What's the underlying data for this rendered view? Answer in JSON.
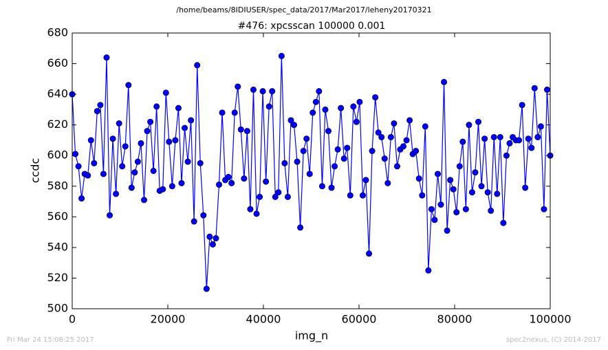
{
  "chart_data": {
    "type": "line",
    "suptitle": "/home/beams/8IDIUSER/spec_data/2017/Mar2017/leheny20170321",
    "title": "#476: xpcsscan 100000 0.001",
    "xlabel": "img_n",
    "ylabel": "ccdc",
    "color": "#0000ff",
    "marker_edge": "#000000",
    "x": [
      0,
      654,
      1307,
      1961,
      2614,
      3268,
      3922,
      4575,
      5229,
      5882,
      6536,
      7190,
      7843,
      8497,
      9150,
      9804,
      10458,
      11111,
      11765,
      12418,
      13072,
      13725,
      14379,
      15033,
      15686,
      16340,
      16993,
      17647,
      18301,
      18954,
      19608,
      20261,
      20915,
      21569,
      22222,
      22876,
      23529,
      24183,
      24837,
      25490,
      26144,
      26797,
      27451,
      28105,
      28758,
      29412,
      30065,
      30719,
      31373,
      32026,
      32680,
      33333,
      33987,
      34641,
      35294,
      35948,
      36601,
      37255,
      37908,
      38562,
      39216,
      39869,
      40523,
      41176,
      41830,
      42484,
      43137,
      43791,
      44444,
      45098,
      45752,
      46405,
      47059,
      47712,
      48366,
      49020,
      49673,
      50327,
      50980,
      51634,
      52288,
      52941,
      53595,
      54248,
      54902,
      55556,
      56209,
      56863,
      57516,
      58170,
      58824,
      59477,
      60131,
      60784,
      61438,
      62092,
      62745,
      63399,
      64052,
      64706,
      65359,
      66013,
      66667,
      67320,
      67974,
      68627,
      69281,
      69935,
      70588,
      71242,
      71895,
      72549,
      73203,
      73856,
      74510,
      75163,
      75817,
      76471,
      77124,
      77778,
      78431,
      79085,
      79739,
      80392,
      81046,
      81699,
      82353,
      83007,
      83660,
      84314,
      84967,
      85621,
      86275,
      86928,
      87582,
      88235,
      88889,
      89542,
      90196,
      90850,
      91503,
      92157,
      92810,
      93464,
      94118,
      94771,
      95425,
      96078,
      96732,
      97386,
      98039,
      98693,
      99346,
      100000
    ],
    "values": [
      640,
      601,
      593,
      572,
      588,
      587,
      610,
      595,
      629,
      633,
      588,
      664,
      561,
      611,
      575,
      621,
      593,
      606,
      646,
      579,
      589,
      596,
      608,
      571,
      616,
      622,
      590,
      632,
      577,
      578,
      641,
      609,
      580,
      610,
      631,
      582,
      618,
      596,
      623,
      557,
      659,
      595,
      561,
      513,
      547,
      542,
      546,
      581,
      628,
      584,
      586,
      582,
      628,
      645,
      617,
      585,
      616,
      565,
      643,
      562,
      573,
      642,
      583,
      632,
      642,
      573,
      576,
      665,
      595,
      573,
      623,
      620,
      596,
      553,
      603,
      611,
      588,
      628,
      635,
      642,
      580,
      630,
      616,
      579,
      593,
      604,
      631,
      598,
      605,
      574,
      632,
      622,
      635,
      574,
      584,
      536,
      603,
      638,
      615,
      612,
      598,
      582,
      612,
      621,
      593,
      604,
      606,
      610,
      623,
      601,
      603,
      585,
      574,
      619,
      525,
      565,
      558,
      588,
      568,
      648,
      551,
      584,
      578,
      563,
      593,
      609,
      565,
      620,
      576,
      589,
      622,
      580,
      611,
      576,
      564,
      612,
      575,
      612,
      556,
      600,
      608,
      612,
      610,
      610,
      633,
      579,
      611,
      605,
      644,
      612,
      619,
      565,
      643,
      600
    ],
    "xlim": [
      0,
      100000
    ],
    "xticks": [
      0,
      20000,
      40000,
      60000,
      80000,
      100000
    ],
    "ylim": [
      500,
      680
    ],
    "yticks": [
      500,
      520,
      540,
      560,
      580,
      600,
      620,
      640,
      660,
      680
    ]
  },
  "footer": {
    "left": "Fri Mar 24 15:08:25 2017",
    "right": "spec2nexus, (C) 2014-2017"
  }
}
